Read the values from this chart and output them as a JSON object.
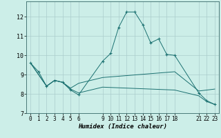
{
  "xlabel": "Humidex (Indice chaleur)",
  "bg_color": "#cceee8",
  "grid_color": "#aacccc",
  "line_color": "#1a7070",
  "series1_x": [
    0,
    1,
    2,
    3,
    4,
    5,
    6,
    9,
    10,
    11,
    12,
    13,
    14,
    15,
    16,
    17,
    18,
    21,
    22,
    23
  ],
  "series1_y": [
    9.6,
    9.15,
    8.4,
    8.7,
    8.6,
    8.2,
    7.95,
    9.7,
    10.1,
    11.45,
    12.25,
    12.25,
    11.6,
    10.65,
    10.85,
    10.05,
    10.0,
    8.05,
    7.65,
    7.45
  ],
  "series2_x": [
    0,
    2,
    3,
    4,
    5,
    6,
    9,
    18,
    21,
    22,
    23
  ],
  "series2_y": [
    9.6,
    8.4,
    8.7,
    8.6,
    8.3,
    8.55,
    8.85,
    9.15,
    8.15,
    8.2,
    8.25
  ],
  "series3_x": [
    0,
    2,
    3,
    4,
    5,
    6,
    9,
    18,
    21,
    22,
    23
  ],
  "series3_y": [
    9.6,
    8.4,
    8.7,
    8.6,
    8.25,
    8.05,
    8.35,
    8.2,
    7.9,
    7.6,
    7.45
  ],
  "xlim": [
    -0.5,
    23.5
  ],
  "ylim": [
    7,
    12.8
  ],
  "yticks": [
    7,
    8,
    9,
    10,
    11,
    12
  ],
  "xticks": [
    0,
    1,
    2,
    3,
    4,
    5,
    6,
    9,
    10,
    11,
    12,
    13,
    14,
    15,
    16,
    17,
    18,
    21,
    22,
    23
  ],
  "figsize": [
    3.2,
    2.0
  ],
  "dpi": 100
}
